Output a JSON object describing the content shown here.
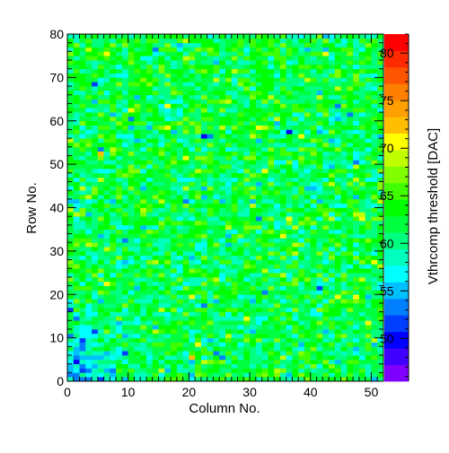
{
  "chart_data": {
    "type": "heatmap",
    "title": "",
    "xlabel": "Column No.",
    "ylabel": "Row No.",
    "zlabel": "Vthrcomp threshold [DAC]",
    "xlim": [
      0,
      52
    ],
    "ylim": [
      0,
      80
    ],
    "zlim": [
      45.5,
      82
    ],
    "x_ticks": [
      0,
      10,
      20,
      30,
      40,
      50
    ],
    "y_ticks": [
      0,
      10,
      20,
      30,
      40,
      50,
      60,
      70,
      80
    ],
    "z_ticks": [
      50,
      55,
      60,
      65,
      70,
      75,
      80
    ],
    "columns": 52,
    "rows": 80,
    "value_summary": {
      "typical": 62,
      "typical_spread": 3,
      "low_region": {
        "columns": [
          0,
          14
        ],
        "rows": [
          0,
          22
        ],
        "typical": 55
      }
    },
    "colormap": {
      "name": "rainbow",
      "colors": [
        "#7f00ff",
        "#3f00ff",
        "#0000ff",
        "#003fff",
        "#007fff",
        "#00bfff",
        "#00ffff",
        "#00ffbf",
        "#00ff7f",
        "#00ff3f",
        "#00ff00",
        "#3fff00",
        "#7fff00",
        "#bfff00",
        "#ffff00",
        "#ffbf00",
        "#ff9f00",
        "#ff7f00",
        "#ff5500",
        "#ff2a00",
        "#ff0000"
      ]
    },
    "grid": false,
    "legend": "colorbar-right"
  }
}
